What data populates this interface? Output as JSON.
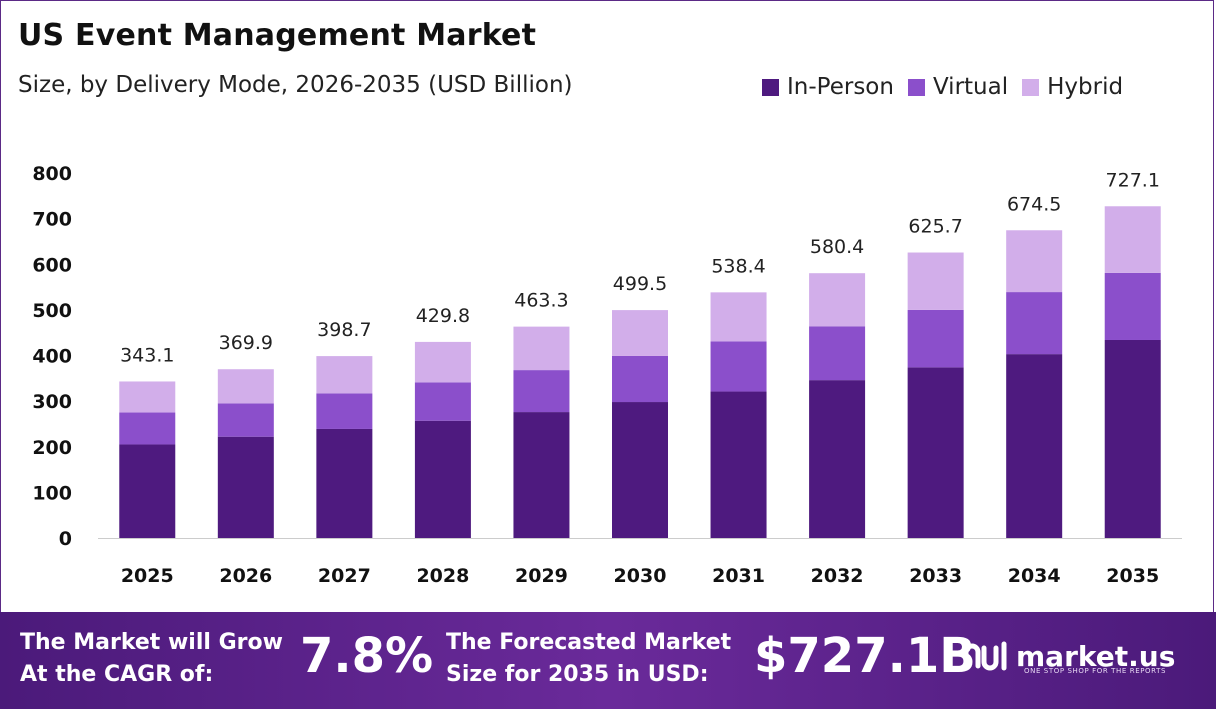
{
  "header": {
    "title": "US Event Management Market",
    "subtitle": "Size, by Delivery Mode, 2026-2035 (USD Billion)"
  },
  "colors": {
    "in_person": "#4e1a7f",
    "virtual": "#8b4fcb",
    "hybrid": "#d2aeea",
    "footer": "#5a2289",
    "axis_line": "#cccccc"
  },
  "chart_data": {
    "type": "bar",
    "stacked": true,
    "title": "US Event Management Market",
    "subtitle": "Size, by Delivery Mode, 2026-2035 (USD Billion)",
    "categories": [
      "2025",
      "2026",
      "2027",
      "2028",
      "2029",
      "2030",
      "2031",
      "2032",
      "2033",
      "2034",
      "2035"
    ],
    "series": [
      {
        "name": "In-Person",
        "values": [
          205,
          222,
          239,
          257,
          276,
          298,
          321,
          346,
          374,
          403,
          434
        ]
      },
      {
        "name": "Virtual",
        "values": [
          70,
          73,
          78,
          84,
          92,
          101,
          110,
          118,
          126,
          136,
          147
        ]
      },
      {
        "name": "Hybrid",
        "values": [
          68.1,
          74.9,
          81.7,
          88.8,
          95.3,
          100.5,
          107.4,
          116.4,
          125.7,
          135.5,
          146.1
        ]
      }
    ],
    "totals": [
      "343.1",
      "369.9",
      "398.7",
      "429.8",
      "463.3",
      "499.5",
      "538.4",
      "580.4",
      "625.7",
      "674.5",
      "727.1"
    ],
    "yticks": [
      "0",
      "100",
      "200",
      "300",
      "400",
      "500",
      "600",
      "700",
      "800"
    ],
    "ylim": [
      0,
      800
    ],
    "legend_position": "top-right",
    "grid": false
  },
  "footer": {
    "cagr_label": "The Market will Grow\nAt the CAGR of:",
    "cagr_value": "7.8%",
    "forecast_label": "The Forecasted Market\nSize for 2035 in USD:",
    "forecast_value": "$727.1B",
    "brand": "market.us",
    "brand_tagline": "ONE STOP SHOP FOR THE REPORTS"
  }
}
